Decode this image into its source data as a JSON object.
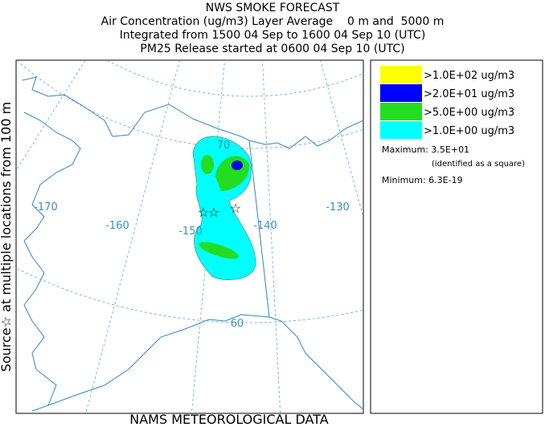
{
  "header": {
    "title": "NWS SMOKE FORECAST",
    "lines": [
      "Air Concentration (ug/m3) Layer Average    0 m and  5000 m",
      "Integrated from 1500 04 Sep to 1600 04 Sep 10 (UTC)",
      "PM25 Release started at 0600 04 Sep 10 (UTC)"
    ]
  },
  "side_label": "Source☆ at multiple locations from 100 m",
  "footer": "NAMS METEOROLOGICAL DATA",
  "legend": {
    "items": [
      {
        "label": ">1.0E+02 ug/m3",
        "color": "#ffff00"
      },
      {
        "label": ">2.0E+01 ug/m3",
        "color": "#0000ff"
      },
      {
        "label": ">5.0E+00 ug/m3",
        "color": "#22dd22"
      },
      {
        "label": ">1.0E+00 ug/m3",
        "color": "#00ffff"
      }
    ],
    "maximum": "Maximum: 3.5E+01",
    "maximum_note": "(identified as a square)",
    "minimum": "Minimum: 6.3E-19"
  },
  "map": {
    "labels": [
      "-170",
      "-160",
      "-150",
      "-140",
      "-130",
      "70",
      "60"
    ]
  }
}
